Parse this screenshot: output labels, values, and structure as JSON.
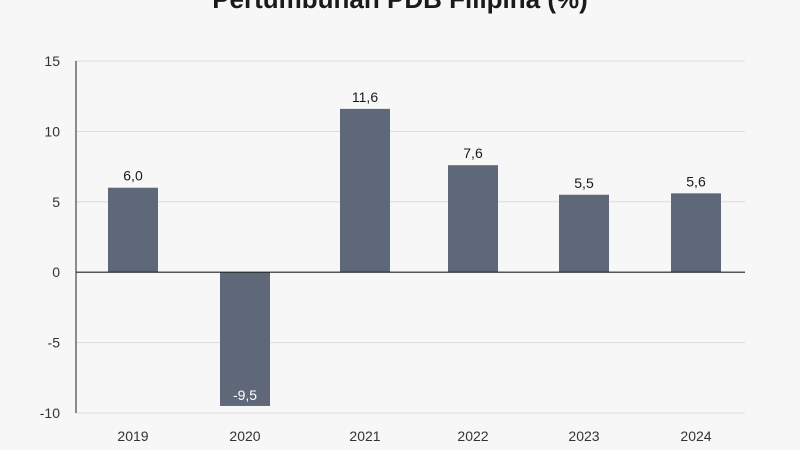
{
  "chart_data": {
    "type": "bar",
    "title": "Pertumbuhan PDB Filipina (%)",
    "categories": [
      "2019",
      "2020",
      "2021",
      "2022",
      "2023",
      "2024"
    ],
    "values": [
      6.0,
      -9.5,
      11.6,
      7.6,
      5.5,
      5.6
    ],
    "value_labels": [
      "6,0",
      "-9,5",
      "11,6",
      "7,6",
      "5,5",
      "5,6"
    ],
    "xlabel": "",
    "ylabel": "",
    "ylim": [
      -10,
      15
    ],
    "y_ticks": [
      15,
      10,
      5,
      0,
      -5,
      -10
    ],
    "y_tick_labels": [
      "15",
      "10",
      "5",
      "0",
      "-5",
      "-10"
    ],
    "grid": true,
    "bar_color": "#5f6878",
    "legend": "none"
  }
}
